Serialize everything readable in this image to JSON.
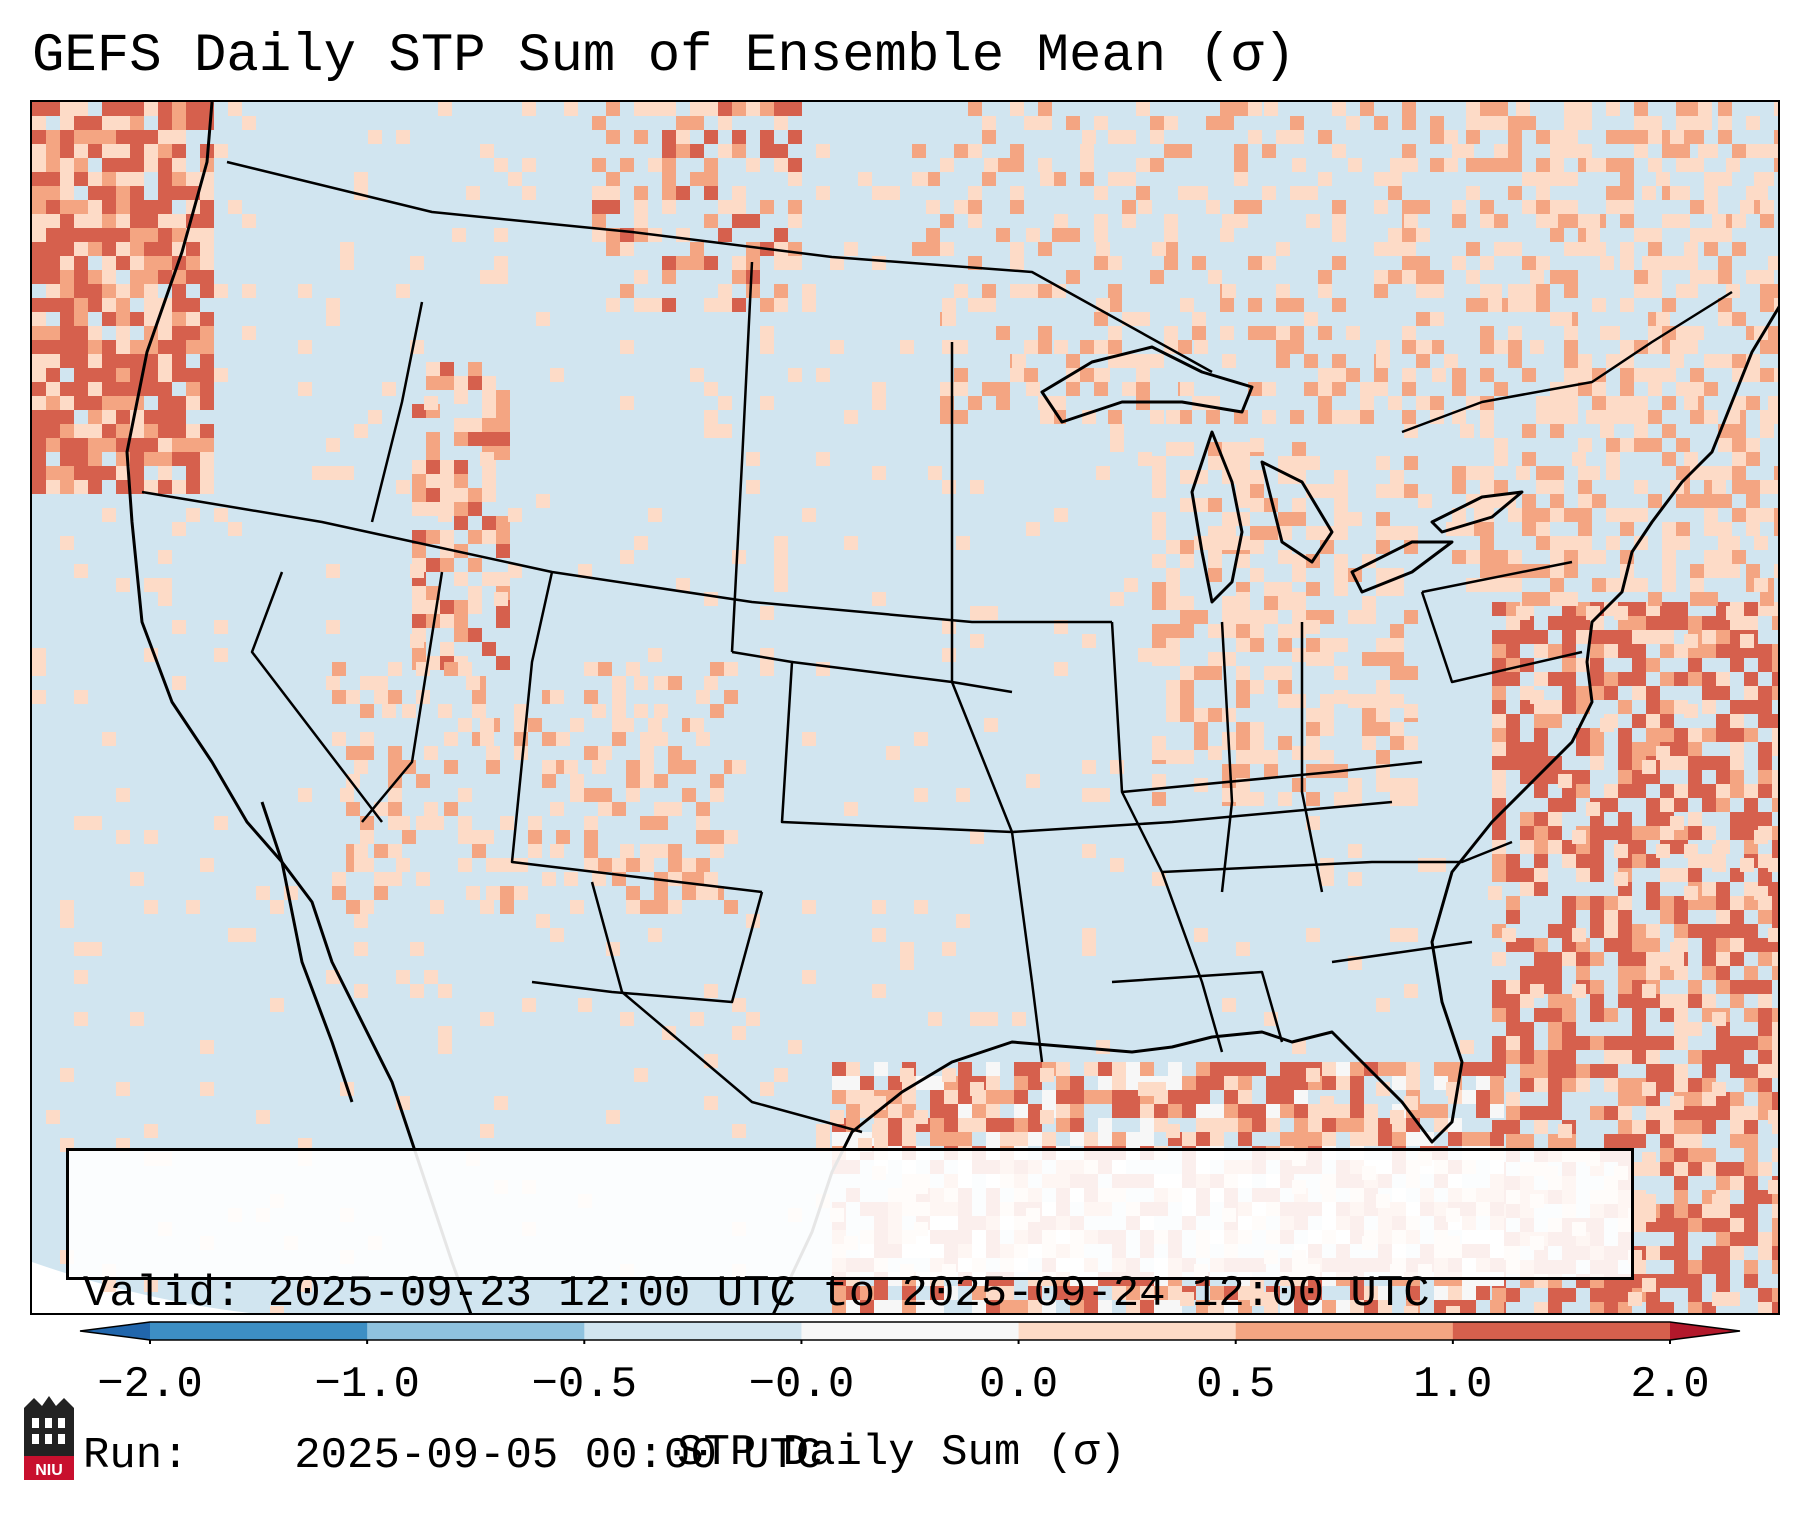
{
  "title": "GEFS Daily STP Sum of Ensemble Mean (σ)",
  "info": {
    "valid_label": "Valid:",
    "valid_value": "2025-09-23 12:00 UTC to 2025-09-24 12:00 UTC",
    "run_label": "Run:",
    "run_value": "2025-09-05 00:00 UTC"
  },
  "colorbar": {
    "label": "STP Daily Sum (σ)",
    "ticks": [
      "−2.0",
      "−1.0",
      "−0.5",
      "−0.0",
      "0.0",
      "0.5",
      "1.0",
      "2.0"
    ],
    "bins": [
      {
        "from": -2.0,
        "to": -1.0,
        "color": "#3d8fc4"
      },
      {
        "from": -1.0,
        "to": -0.5,
        "color": "#8fc2de"
      },
      {
        "from": -0.5,
        "to": -0.0,
        "color": "#d1e5f0"
      },
      {
        "from": -0.0,
        "to": 0.0,
        "color": "#f7f7f7"
      },
      {
        "from": 0.0,
        "to": 0.5,
        "color": "#fddbc7"
      },
      {
        "from": 0.5,
        "to": 1.0,
        "color": "#f4a582"
      },
      {
        "from": 1.0,
        "to": 2.0,
        "color": "#d6604d"
      }
    ],
    "under_color": "#2166ac",
    "over_color": "#b2182b"
  },
  "map": {
    "background_color": "#d1e5f0",
    "border_color": "#000000",
    "region": "Contiguous United States, southern Canada, northern Mexico, Gulf of Mexico, western Atlantic"
  },
  "logo_text": "NIU"
}
